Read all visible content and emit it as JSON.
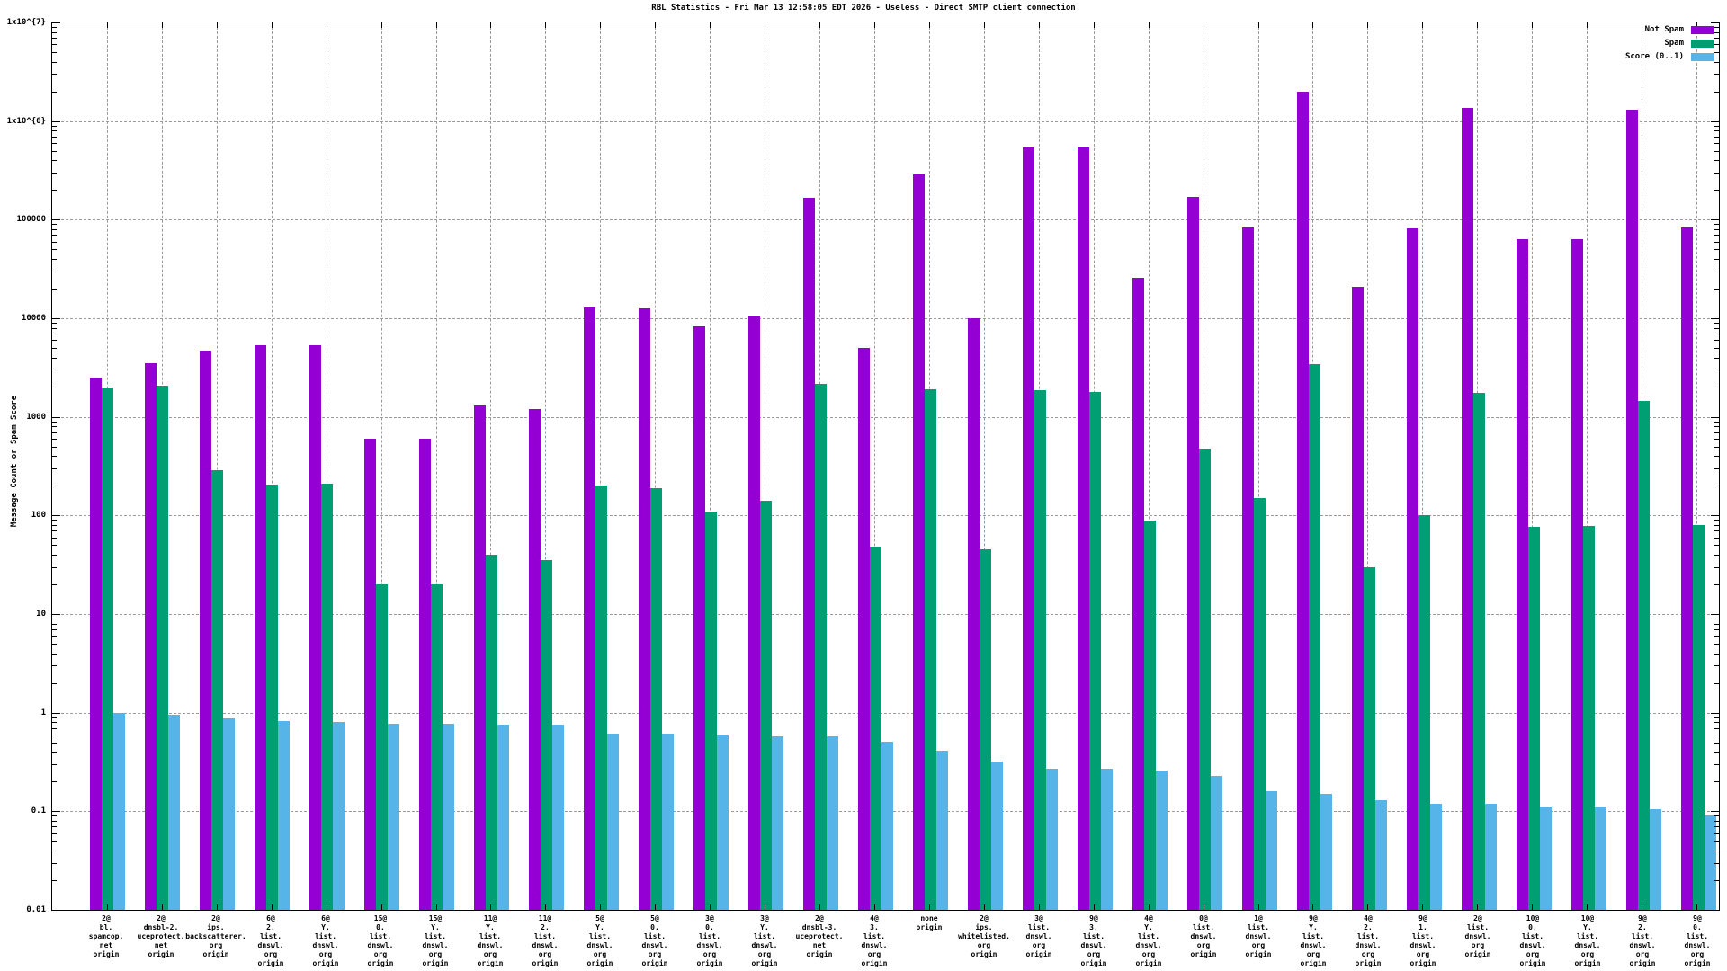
{
  "title": "RBL Statistics - Fri Mar 13 12:58:05 EDT 2026 - Useless - Direct SMTP client connection",
  "y_axis": {
    "label": "Message Count or Spam Score",
    "tick_labels": [
      "1x10^{7}",
      "1x10^{6}",
      "100000",
      "10000",
      "1000",
      "100",
      "10",
      "1",
      "0.1",
      "0.01"
    ]
  },
  "legend": [
    {
      "label": "Not Spam",
      "color": "#9400d3"
    },
    {
      "label": "Spam",
      "color": "#009e73"
    },
    {
      "label": "Score (0..1)",
      "color": "#56b4e9"
    }
  ],
  "chart_data": {
    "type": "bar",
    "scale": "log",
    "ylim": [
      0.01,
      10000000
    ],
    "grid": true,
    "legend_position": "top-right",
    "categories": [
      [
        "2@",
        "bl.",
        "spamcop.",
        "net",
        "origin"
      ],
      [
        "2@",
        "dnsbl-2.",
        "uceprotect.",
        "net",
        "origin"
      ],
      [
        "2@",
        "ips.",
        "backscatterer.",
        "org",
        "origin"
      ],
      [
        "6@",
        "2.",
        "list.",
        "dnswl.",
        "org",
        "origin"
      ],
      [
        "6@",
        "Y.",
        "list.",
        "dnswl.",
        "org",
        "origin"
      ],
      [
        "15@",
        "0.",
        "list.",
        "dnswl.",
        "org",
        "origin"
      ],
      [
        "15@",
        "Y.",
        "list.",
        "dnswl.",
        "org",
        "origin"
      ],
      [
        "11@",
        "Y.",
        "list.",
        "dnswl.",
        "org",
        "origin"
      ],
      [
        "11@",
        "2.",
        "list.",
        "dnswl.",
        "org",
        "origin"
      ],
      [
        "5@",
        "Y.",
        "list.",
        "dnswl.",
        "org",
        "origin"
      ],
      [
        "5@",
        "0.",
        "list.",
        "dnswl.",
        "org",
        "origin"
      ],
      [
        "3@",
        "0.",
        "list.",
        "dnswl.",
        "org",
        "origin"
      ],
      [
        "3@",
        "Y.",
        "list.",
        "dnswl.",
        "org",
        "origin"
      ],
      [
        "2@",
        "dnsbl-3.",
        "uceprotect.",
        "net",
        "origin"
      ],
      [
        "4@",
        "3.",
        "list.",
        "dnswl.",
        "org",
        "origin"
      ],
      [
        "none",
        "origin"
      ],
      [
        "2@",
        "ips.",
        "whitelisted.",
        "org",
        "origin"
      ],
      [
        "3@",
        "list.",
        "dnswl.",
        "org",
        "origin"
      ],
      [
        "9@",
        "3.",
        "list.",
        "dnswl.",
        "org",
        "origin"
      ],
      [
        "4@",
        "Y.",
        "list.",
        "dnswl.",
        "org",
        "origin"
      ],
      [
        "0@",
        "list.",
        "dnswl.",
        "org",
        "origin"
      ],
      [
        "1@",
        "list.",
        "dnswl.",
        "org",
        "origin"
      ],
      [
        "9@",
        "Y.",
        "list.",
        "dnswl.",
        "org",
        "origin"
      ],
      [
        "4@",
        "2.",
        "list.",
        "dnswl.",
        "org",
        "origin"
      ],
      [
        "9@",
        "1.",
        "list.",
        "dnswl.",
        "org",
        "origin"
      ],
      [
        "2@",
        "list.",
        "dnswl.",
        "org",
        "origin"
      ],
      [
        "10@",
        "0.",
        "list.",
        "dnswl.",
        "org",
        "origin"
      ],
      [
        "10@",
        "Y.",
        "list.",
        "dnswl.",
        "org",
        "origin"
      ],
      [
        "9@",
        "2.",
        "list.",
        "dnswl.",
        "org",
        "origin"
      ],
      [
        "9@",
        "0.",
        "list.",
        "dnswl.",
        "org",
        "origin"
      ]
    ],
    "series": [
      {
        "name": "Not Spam",
        "color": "#9400d3",
        "values": [
          2500,
          3500,
          4700,
          5300,
          5300,
          600,
          600,
          1300,
          1200,
          13000,
          12500,
          8200,
          10500,
          165000,
          5000,
          290000,
          10100,
          540000,
          540000,
          26000,
          170000,
          83000,
          2000000,
          21000,
          81000,
          1350000,
          63000,
          63000,
          1300000,
          84000
        ]
      },
      {
        "name": "Spam",
        "color": "#009e73",
        "values": [
          2000,
          2050,
          290,
          205,
          210,
          20,
          20,
          40,
          35,
          200,
          190,
          110,
          140,
          2150,
          48,
          1900,
          45,
          1850,
          1800,
          88,
          480,
          150,
          3400,
          30,
          100,
          1750,
          77,
          78,
          1450,
          80
        ]
      },
      {
        "name": "Score (0..1)",
        "color": "#56b4e9",
        "values": [
          1.0,
          0.95,
          0.88,
          0.82,
          0.81,
          0.78,
          0.77,
          0.76,
          0.76,
          0.61,
          0.61,
          0.59,
          0.58,
          0.58,
          0.51,
          0.41,
          0.32,
          0.27,
          0.27,
          0.26,
          0.23,
          0.16,
          0.15,
          0.13,
          0.12,
          0.12,
          0.11,
          0.11,
          0.105,
          0.09
        ]
      }
    ]
  }
}
